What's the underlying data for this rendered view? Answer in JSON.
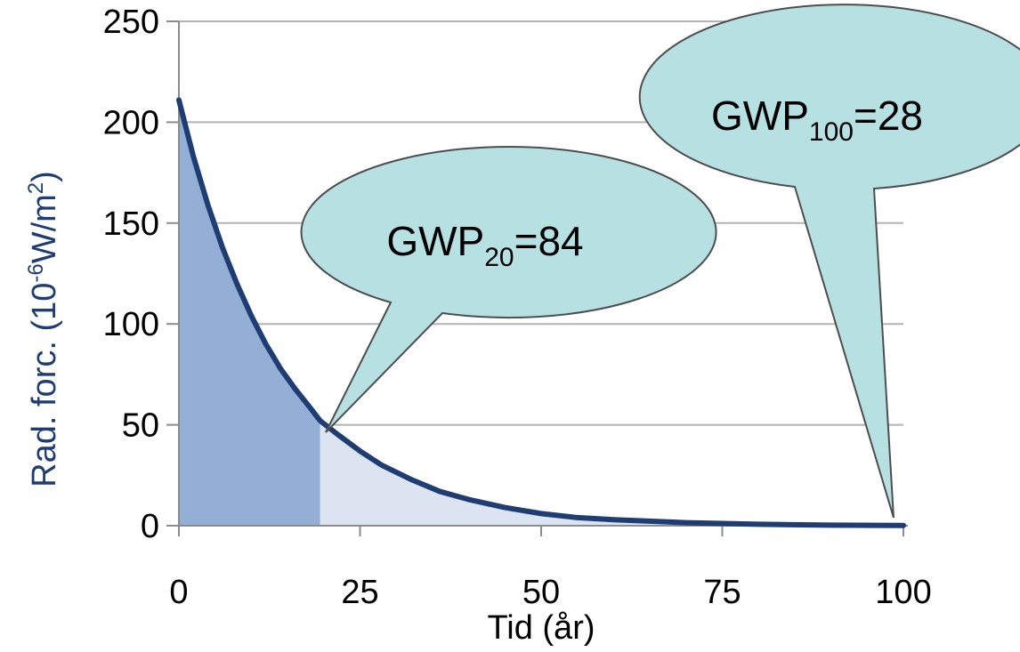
{
  "colors": {
    "curve": "#1f3d73",
    "fill_first": "#93afd6",
    "fill_rest": "#dce4f1",
    "callout_fill": "#b7e0e3",
    "callout_stroke": "#4d4d4d",
    "grid": "#b3b3b3",
    "axis": "#8c8c8c",
    "ylabel": "#1f3d73"
  },
  "chart_data": {
    "type": "area",
    "title": "",
    "xlabel": "Tid (år)",
    "ylabel": {
      "main": "Rad. forc. (10",
      "sup1": "-6",
      "mid": "W/m",
      "sup2": "2",
      "end": ")"
    },
    "xlim": [
      0,
      100
    ],
    "ylim": [
      0,
      250
    ],
    "x_ticks": [
      0,
      25,
      50,
      75,
      100
    ],
    "y_ticks": [
      0,
      50,
      100,
      150,
      200,
      250
    ],
    "grid": true,
    "curve": {
      "description_formula_free": true,
      "x": [
        0,
        2,
        4,
        6,
        8,
        10,
        12,
        14,
        16,
        18,
        19.5,
        22,
        25,
        28,
        32,
        36,
        40,
        45,
        50,
        55,
        60,
        70,
        80,
        90,
        100
      ],
      "y": [
        211,
        183,
        159,
        138,
        120,
        104,
        90,
        78,
        68,
        59,
        52,
        45,
        37,
        30,
        23,
        17,
        13,
        9,
        6,
        4,
        3,
        1.5,
        0.7,
        0.3,
        0.1
      ]
    },
    "shaded_regions": [
      {
        "from": 0,
        "to": 19.5,
        "shade": "dark"
      },
      {
        "from": 19.5,
        "to": 100,
        "shade": "light"
      }
    ],
    "annotations": [
      {
        "main": "GWP",
        "sub": "20",
        "rest": "=84",
        "points_to": [
          20,
          45
        ]
      },
      {
        "main": "GWP",
        "sub": "100",
        "rest": "=28",
        "points_to": [
          99,
          0.5
        ]
      }
    ]
  }
}
